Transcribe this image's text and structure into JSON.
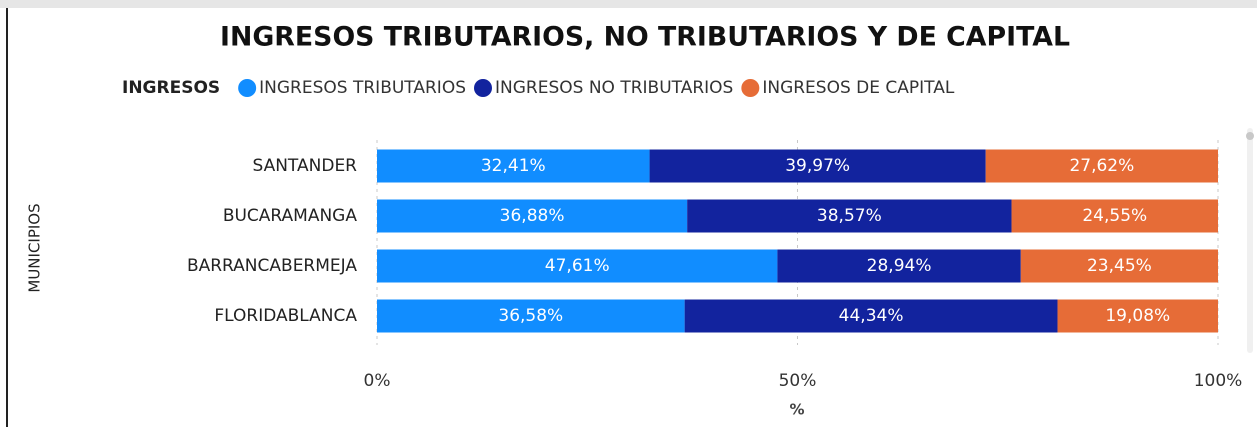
{
  "chart_data": {
    "type": "stacked_barh",
    "title": "INGRESOS TRIBUTARIOS, NO TRIBUTARIOS Y DE CAPITAL",
    "legend_title": "INGRESOS",
    "categories": [
      "SANTANDER",
      "BUCARAMANGA",
      "BARRANCABERMEJA",
      "FLORIDABLANCA"
    ],
    "series": [
      {
        "name": "INGRESOS TRIBUTARIOS",
        "color": "#118DFF",
        "values": [
          32.41,
          36.88,
          47.61,
          36.58
        ],
        "value_labels": [
          "32,41%",
          "36,88%",
          "47,61%",
          "36,58%"
        ]
      },
      {
        "name": "INGRESOS NO TRIBUTARIOS",
        "color": "#12239E",
        "values": [
          39.97,
          38.57,
          28.94,
          44.34
        ],
        "value_labels": [
          "39,97%",
          "38,57%",
          "28,94%",
          "44,34%"
        ]
      },
      {
        "name": "INGRESOS DE CAPITAL",
        "color": "#E66C37",
        "values": [
          27.62,
          24.55,
          23.45,
          19.08
        ],
        "value_labels": [
          "27,62%",
          "24,55%",
          "23,45%",
          "19,08%"
        ]
      }
    ],
    "xlim": [
      0,
      100
    ],
    "xticks": [
      {
        "value": 0,
        "label": "0%"
      },
      {
        "value": 50,
        "label": "50%"
      },
      {
        "value": 100,
        "label": "100%"
      }
    ],
    "xlabel": "%",
    "ylabel": "MUNICIPIOS",
    "grid": true,
    "legend_position": "top"
  }
}
